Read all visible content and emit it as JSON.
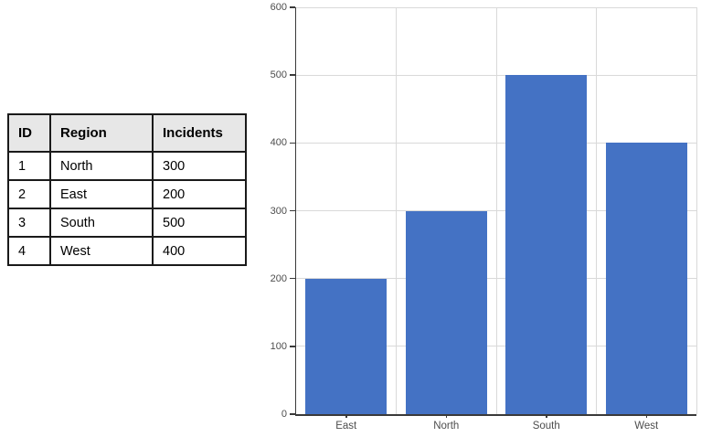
{
  "table": {
    "headers": [
      "ID",
      "Region",
      "Incidents"
    ],
    "rows": [
      [
        "1",
        "North",
        "300"
      ],
      [
        "2",
        "East",
        "200"
      ],
      [
        "3",
        "South",
        "500"
      ],
      [
        "4",
        "West",
        "400"
      ]
    ]
  },
  "chart_data": {
    "type": "bar",
    "categories": [
      "East",
      "North",
      "South",
      "West"
    ],
    "values": [
      200,
      300,
      500,
      400
    ],
    "title": "",
    "xlabel": "",
    "ylabel": "",
    "ylim": [
      0,
      600
    ],
    "yticks": [
      0,
      100,
      200,
      300,
      400,
      500,
      600
    ],
    "grid": true,
    "legend": false,
    "bar_gap_fraction": 0.185,
    "bar_color": "#4472C4",
    "gridline_color": "#D9D9D9",
    "axis_color": "#3a3a3a",
    "tick_label_color": "#4d4d4d"
  },
  "colors": {
    "page_bg": "#FFFFFF",
    "table_header_bg": "#E7E7E7",
    "table_border": "#1A1A1A"
  }
}
